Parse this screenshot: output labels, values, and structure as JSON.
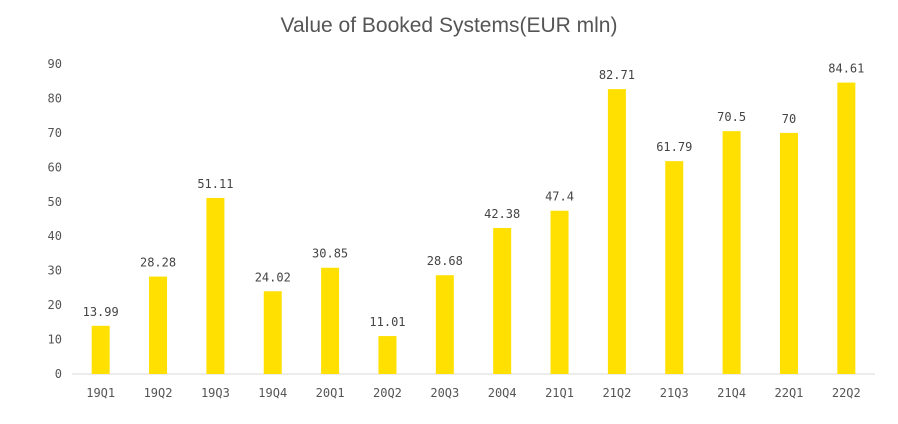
{
  "chart_data": {
    "type": "bar",
    "title": "Value of Booked Systems(EUR mln)",
    "xlabel": "",
    "ylabel": "",
    "categories": [
      "19Q1",
      "19Q2",
      "19Q3",
      "19Q4",
      "20Q1",
      "20Q2",
      "20Q3",
      "20Q4",
      "21Q1",
      "21Q2",
      "21Q3",
      "21Q4",
      "22Q1",
      "22Q2"
    ],
    "values": [
      13.99,
      28.28,
      51.11,
      24.02,
      30.85,
      11.01,
      28.68,
      42.38,
      47.4,
      82.71,
      61.79,
      70.5,
      70,
      84.61
    ],
    "value_labels": [
      "13.99",
      "28.28",
      "51.11",
      "24.02",
      "30.85",
      "11.01",
      "28.68",
      "42.38",
      "47.4",
      "82.71",
      "61.79",
      "70.5",
      "70",
      "84.61"
    ],
    "yticks": [
      "0",
      "10",
      "20",
      "30",
      "40",
      "50",
      "60",
      "70",
      "80",
      "90"
    ],
    "ylim": [
      0,
      90
    ],
    "grid": false,
    "colors": {
      "bar": "#FFE000",
      "axis": "#d9d9d9"
    }
  }
}
